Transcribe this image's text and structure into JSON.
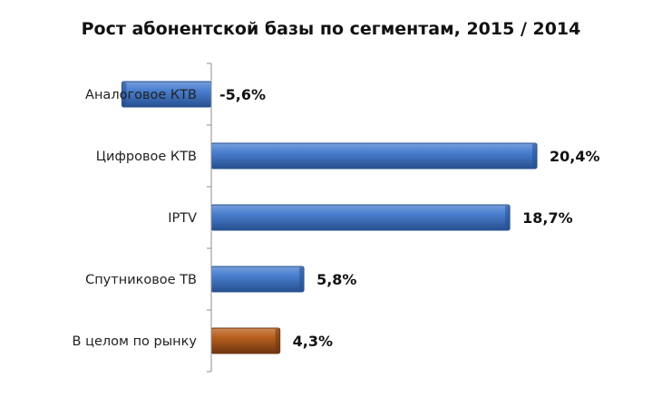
{
  "chart_data": {
    "type": "bar",
    "orientation": "horizontal",
    "title": "Рост абонентской базы по сегментам, 2015 / 2014",
    "categories": [
      "Аналоговое КТВ",
      "Цифровое КТВ",
      "IPTV",
      "Спутниковое ТВ",
      "В целом по рынку"
    ],
    "values": [
      -5.6,
      20.4,
      18.7,
      5.8,
      4.3
    ],
    "value_labels": [
      "-5,6%",
      "20,4%",
      "18,7%",
      "5,8%",
      "4,3%"
    ],
    "unit": "%",
    "xlim": [
      -5.6,
      20.4
    ],
    "grid": false,
    "legend": "none",
    "colors": [
      "#4a7fd0",
      "#4a7fd0",
      "#4a7fd0",
      "#4a7fd0",
      "#b9601e"
    ],
    "dark_colors": [
      "#26508f",
      "#26508f",
      "#26508f",
      "#26508f",
      "#6e3510"
    ]
  }
}
